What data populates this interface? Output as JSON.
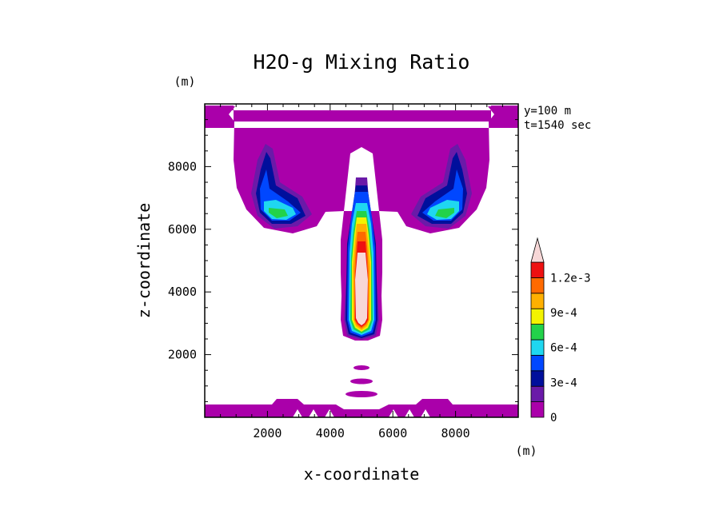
{
  "chart_data": {
    "type": "filled-contour",
    "title": "H2O-g Mixing Ratio",
    "xlabel": "x-coordinate",
    "ylabel": "z-coordinate",
    "x_unit": "(m)",
    "y_unit": "(m)",
    "xlim": [
      0,
      10000
    ],
    "ylim": [
      0,
      10000
    ],
    "x_ticks": [
      {
        "value": 2000,
        "label": "2000"
      },
      {
        "value": 4000,
        "label": "4000"
      },
      {
        "value": 6000,
        "label": "6000"
      },
      {
        "value": 8000,
        "label": "8000"
      }
    ],
    "y_ticks": [
      {
        "value": 2000,
        "label": "2000"
      },
      {
        "value": 4000,
        "label": "4000"
      },
      {
        "value": 6000,
        "label": "6000"
      },
      {
        "value": 8000,
        "label": "8000"
      }
    ],
    "annotations": [
      "y=100 m",
      "t=1540 sec"
    ],
    "colorbar": {
      "levels": [
        0,
        0.00015,
        0.0003,
        0.00045,
        0.0006,
        0.00075,
        0.0009,
        0.00105,
        0.0012
      ],
      "labels": [
        {
          "level": 0,
          "text": "0"
        },
        {
          "level": 0.0003,
          "text": "3e-4"
        },
        {
          "level": 0.0006,
          "text": "6e-4"
        },
        {
          "level": 0.0009,
          "text": "9e-4"
        },
        {
          "level": 0.0012,
          "text": "1.2e-3"
        }
      ],
      "colors": [
        "#aa00aa",
        "#6a1aa8",
        "#000f9c",
        "#0047ff",
        "#1fd7f0",
        "#22d24a",
        "#f3f300",
        "#ffb000",
        "#ff6a00",
        "#ee1111",
        "#f7d7d7"
      ],
      "extend_arrow": "top"
    },
    "regions": [
      {
        "name": "anvil-left",
        "peak_value": 0.00068
      },
      {
        "name": "anvil-right",
        "peak_value": 0.00068
      },
      {
        "name": "central-plume",
        "peak_value": 0.0013
      },
      {
        "name": "surface-layer",
        "peak_value": 0.0001
      }
    ]
  }
}
